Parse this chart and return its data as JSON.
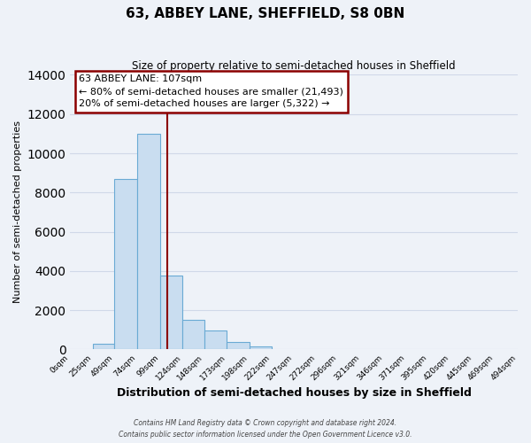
{
  "title": "63, ABBEY LANE, SHEFFIELD, S8 0BN",
  "subtitle": "Size of property relative to semi-detached houses in Sheffield",
  "xlabel": "Distribution of semi-detached houses by size in Sheffield",
  "ylabel": "Number of semi-detached properties",
  "bar_edges": [
    0,
    25,
    49,
    74,
    99,
    124,
    148,
    173,
    198,
    222,
    247,
    272,
    296,
    321,
    346,
    371,
    395,
    420,
    445,
    469,
    494
  ],
  "bar_heights": [
    0,
    300,
    8700,
    11000,
    3750,
    1500,
    950,
    400,
    150,
    0,
    0,
    0,
    0,
    0,
    0,
    0,
    0,
    0,
    0,
    0
  ],
  "bar_color": "#c9ddf0",
  "bar_edge_color": "#6aaad4",
  "vline_color": "#8B0000",
  "vline_x": 107,
  "annotation_title": "63 ABBEY LANE: 107sqm",
  "annotation_line1": "← 80% of semi-detached houses are smaller (21,493)",
  "annotation_line2": "20% of semi-detached houses are larger (5,322) →",
  "annotation_box_color": "#ffffff",
  "annotation_box_edge": "#8B0000",
  "ylim": [
    0,
    14000
  ],
  "yticks": [
    0,
    2000,
    4000,
    6000,
    8000,
    10000,
    12000,
    14000
  ],
  "xtick_labels": [
    "0sqm",
    "25sqm",
    "49sqm",
    "74sqm",
    "99sqm",
    "124sqm",
    "148sqm",
    "173sqm",
    "198sqm",
    "222sqm",
    "247sqm",
    "272sqm",
    "296sqm",
    "321sqm",
    "346sqm",
    "371sqm",
    "395sqm",
    "420sqm",
    "445sqm",
    "469sqm",
    "494sqm"
  ],
  "grid_color": "#d0d8e8",
  "background_color": "#eef2f8",
  "footer1": "Contains HM Land Registry data © Crown copyright and database right 2024.",
  "footer2": "Contains public sector information licensed under the Open Government Licence v3.0."
}
